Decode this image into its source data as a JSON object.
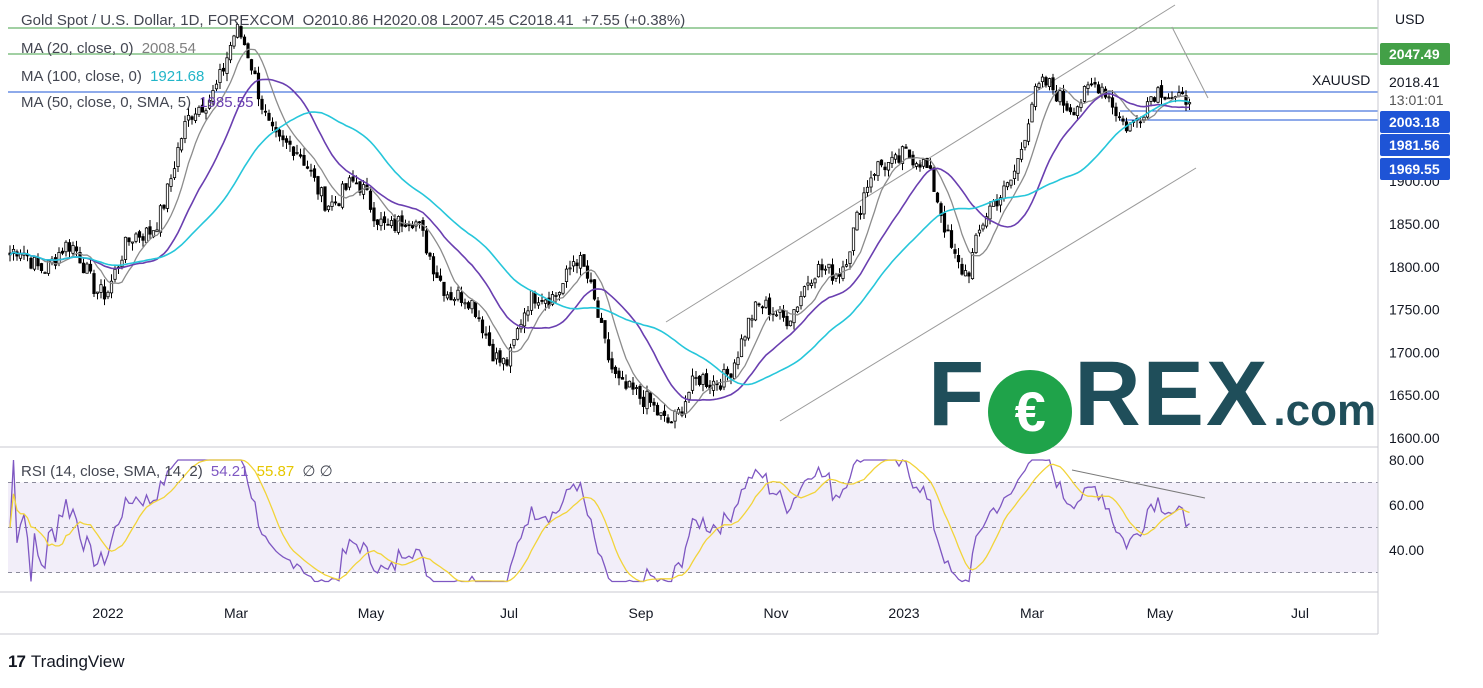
{
  "header": {
    "symbol_line": "Gold Spot / U.S. Dollar, 1D, FOREXCOM",
    "ohlc": "O2010.86  H2020.08  L2007.45  C2018.41",
    "change": "+7.55 (+0.38%)"
  },
  "legend": {
    "ma20_label": "MA (20, close, 0)",
    "ma20_value": "2008.54",
    "ma100_label": "MA (100, close, 0)",
    "ma100_value": "1921.68",
    "ma50_label": "MA (50, close, 0, SMA, 5)",
    "ma50_value": "1985.55",
    "rsi_label": "RSI (14, close, SMA, 14, 2)",
    "rsi_value": "54.21",
    "rsi_sma_value": "55.87",
    "rsi_extra": "∅  ∅"
  },
  "price_axis": {
    "currency": "USD",
    "ticks": [
      "1600.00",
      "1650.00",
      "1700.00",
      "1750.00",
      "1800.00",
      "1850.00",
      "1900.00"
    ],
    "symbol_tag": "XAUUSD",
    "last_price": "2018.41",
    "countdown": "13:01:01",
    "badges": [
      {
        "value": "2047.49",
        "color": "#43a047"
      },
      {
        "value": "2003.18",
        "color": "#1e54d6"
      },
      {
        "value": "1981.56",
        "color": "#1e54d6"
      },
      {
        "value": "1969.55",
        "color": "#1e54d6"
      }
    ]
  },
  "rsi_axis": {
    "ticks": [
      "80.00",
      "60.00",
      "40.00"
    ]
  },
  "time_axis": {
    "labels": [
      "2022",
      "Mar",
      "May",
      "Jul",
      "Sep",
      "Nov",
      "2023",
      "Mar",
      "May",
      "Jul"
    ]
  },
  "watermark": {
    "brand": "FOREX",
    "suffix": ".com",
    "o_glyph": "€"
  },
  "branding": {
    "name": "TradingView"
  },
  "colors": {
    "ma20": "#8c8c8c",
    "ma100": "#26c6da",
    "ma50": "#6a3fb0",
    "rsi": "#7e57c2",
    "rsi_sma": "#f2d43a",
    "candle": "#000000",
    "green_level": "#43a047",
    "blue_level": "#1e54d6"
  },
  "chart_data": {
    "type": "candlestick",
    "title": "Gold Spot / U.S. Dollar, 1D, FOREXCOM",
    "x_range": [
      "2021-12",
      "2023-05"
    ],
    "ylim": [
      1600,
      2075
    ],
    "anchor_prices": [
      {
        "date": "2021-12",
        "close": 1790
      },
      {
        "date": "2022-01",
        "close": 1800
      },
      {
        "date": "2022-02",
        "close": 1905
      },
      {
        "date": "2022-03",
        "close": 2050
      },
      {
        "date": "2022-04",
        "close": 1930
      },
      {
        "date": "2022-05",
        "close": 1850
      },
      {
        "date": "2022-06",
        "close": 1815
      },
      {
        "date": "2022-07",
        "close": 1700
      },
      {
        "date": "2022-08",
        "close": 1790
      },
      {
        "date": "2022-09",
        "close": 1650
      },
      {
        "date": "2022-10",
        "close": 1635
      },
      {
        "date": "2022-11",
        "close": 1765
      },
      {
        "date": "2022-12",
        "close": 1820
      },
      {
        "date": "2023-01",
        "close": 1930
      },
      {
        "date": "2023-02",
        "close": 1820
      },
      {
        "date": "2023-03",
        "close": 1975
      },
      {
        "date": "2023-04",
        "close": 1990
      },
      {
        "date": "2023-05",
        "close": 2018.41
      }
    ],
    "ma_values": {
      "ma20": 2008.54,
      "ma100": 1921.68,
      "ma50": 1985.55
    },
    "horizontal_levels": [
      2047.49,
      2003.18,
      1981.56,
      1969.55
    ],
    "rsi": {
      "ylim": [
        20,
        85
      ],
      "last": 54.21,
      "sma_last": 55.87,
      "bands": [
        70,
        50,
        30
      ]
    }
  }
}
